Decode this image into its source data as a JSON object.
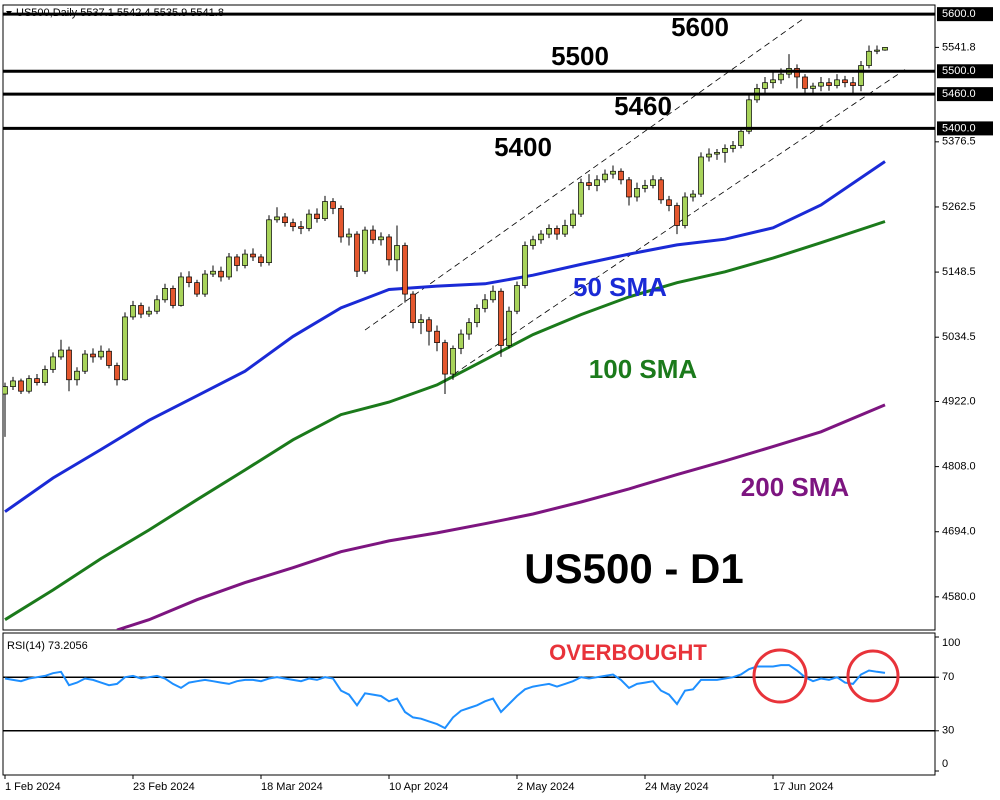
{
  "chart_data": [
    {
      "type": "candlestick",
      "title": "US500,Daily  5537.1 5542.4 5535.9 5541.8",
      "annotation": "US500 - D1",
      "up_color": "#a8d35a",
      "down_color": "#e4572e",
      "xlim": [
        -0.25,
        116.25
      ],
      "xticks": [
        {
          "value": 0,
          "label": "1 Feb 2024"
        },
        {
          "value": 16,
          "label": "23 Feb 2024"
        },
        {
          "value": 32,
          "label": "18 Mar 2024"
        },
        {
          "value": 48,
          "label": "10 Apr 2024"
        },
        {
          "value": 64,
          "label": "2 May 2024"
        },
        {
          "value": 80,
          "label": "24 May 2024"
        },
        {
          "value": 96,
          "label": "17 Jun 2024"
        }
      ],
      "ylim": [
        4522,
        5616
      ],
      "yticks": [
        {
          "value": 4580,
          "label": "4580.0"
        },
        {
          "value": 4694,
          "label": "4694.0"
        },
        {
          "value": 4808,
          "label": "4808.0"
        },
        {
          "value": 4922,
          "label": "4922.0"
        },
        {
          "value": 5034.5,
          "label": "5034.5"
        },
        {
          "value": 5148.5,
          "label": "5148.5"
        },
        {
          "value": 5262.5,
          "label": "5262.5"
        },
        {
          "value": 5376.5,
          "label": "5376.5"
        }
      ],
      "last_price": 5541.8,
      "levels": [
        {
          "value": 5600,
          "label": "5600.0",
          "annotation": "5600"
        },
        {
          "value": 5500,
          "label": "5500.0",
          "annotation": "5500"
        },
        {
          "value": 5460,
          "label": "5460.0",
          "annotation": "5460"
        },
        {
          "value": 5400,
          "label": "5400.0",
          "annotation": "5400"
        }
      ],
      "trendlines": [
        {
          "x": [
            45,
            100
          ],
          "y": [
            5047,
            5594
          ]
        },
        {
          "x": [
            54,
            112.5
          ],
          "y": [
            4950,
            5503
          ]
        }
      ],
      "open": [
        4935,
        4948,
        4958,
        4940,
        4962,
        4955,
        4978,
        5000,
        5012,
        4960,
        4975,
        5005,
        5000,
        5010,
        4985,
        4960,
        5070,
        5090,
        5075,
        5080,
        5100,
        5120,
        5090,
        5140,
        5130,
        5110,
        5145,
        5150,
        5140,
        5175,
        5160,
        5180,
        5175,
        5165,
        5240,
        5245,
        5235,
        5228,
        5225,
        5250,
        5242,
        5272,
        5260,
        5210,
        5215,
        5150,
        5222,
        5205,
        5210,
        5170,
        5195,
        5110,
        5060,
        5065,
        5045,
        5025,
        4970,
        5015,
        5040,
        5060,
        5085,
        5100,
        5115,
        5020,
        5080,
        5125,
        5195,
        5205,
        5215,
        5225,
        5215,
        5230,
        5250,
        5305,
        5300,
        5310,
        5320,
        5325,
        5310,
        5280,
        5295,
        5300,
        5310,
        5275,
        5265,
        5230,
        5280,
        5285,
        5350,
        5355,
        5358,
        5365,
        5370,
        5395,
        5450,
        5470,
        5480,
        5485,
        5495,
        5505,
        5490,
        5470,
        5474,
        5480,
        5475,
        5485,
        5480,
        5475,
        5510,
        5535,
        5537.1
      ],
      "high": [
        4955,
        4965,
        4962,
        4968,
        4970,
        4985,
        5008,
        5030,
        5018,
        4982,
        5012,
        5015,
        5020,
        5015,
        4990,
        5078,
        5098,
        5095,
        5088,
        5108,
        5128,
        5125,
        5148,
        5150,
        5135,
        5152,
        5160,
        5158,
        5182,
        5180,
        5188,
        5190,
        5180,
        5248,
        5262,
        5252,
        5242,
        5238,
        5258,
        5260,
        5282,
        5278,
        5265,
        5225,
        5220,
        5228,
        5230,
        5218,
        5215,
        5230,
        5200,
        5115,
        5075,
        5070,
        5055,
        5030,
        5020,
        5048,
        5068,
        5092,
        5110,
        5125,
        5120,
        5088,
        5132,
        5202,
        5212,
        5222,
        5232,
        5230,
        5240,
        5258,
        5312,
        5320,
        5318,
        5328,
        5335,
        5330,
        5315,
        5305,
        5310,
        5318,
        5315,
        5282,
        5270,
        5288,
        5292,
        5358,
        5365,
        5364,
        5372,
        5378,
        5402,
        5458,
        5478,
        5490,
        5500,
        5505,
        5530,
        5512,
        5495,
        5480,
        5490,
        5488,
        5495,
        5492,
        5490,
        5518,
        5545,
        5545,
        5542.4
      ],
      "low": [
        4860,
        4942,
        4935,
        4936,
        4950,
        4950,
        4972,
        4995,
        4940,
        4950,
        4970,
        4990,
        4995,
        4980,
        4950,
        4958,
        5065,
        5068,
        5070,
        5075,
        5095,
        5085,
        5088,
        5122,
        5105,
        5105,
        5140,
        5132,
        5135,
        5150,
        5155,
        5168,
        5158,
        5160,
        5235,
        5228,
        5220,
        5215,
        5220,
        5235,
        5238,
        5250,
        5200,
        5195,
        5140,
        5145,
        5198,
        5195,
        5160,
        5150,
        5095,
        5050,
        5040,
        5020,
        5010,
        4935,
        4960,
        5005,
        5030,
        5052,
        5078,
        5095,
        5000,
        5015,
        5075,
        5120,
        5188,
        5198,
        5208,
        5205,
        5210,
        5225,
        5245,
        5292,
        5290,
        5305,
        5312,
        5302,
        5265,
        5272,
        5288,
        5295,
        5268,
        5255,
        5215,
        5225,
        5272,
        5280,
        5342,
        5345,
        5340,
        5358,
        5365,
        5390,
        5445,
        5462,
        5470,
        5478,
        5488,
        5470,
        5462,
        5462,
        5465,
        5466,
        5470,
        5472,
        5458,
        5465,
        5505,
        5530,
        5535.9
      ],
      "close": [
        4948,
        4958,
        4940,
        4962,
        4955,
        4978,
        5000,
        5012,
        4960,
        4975,
        5005,
        5000,
        5010,
        4985,
        4960,
        5070,
        5090,
        5075,
        5080,
        5100,
        5120,
        5090,
        5140,
        5130,
        5110,
        5145,
        5150,
        5140,
        5175,
        5160,
        5180,
        5175,
        5165,
        5240,
        5245,
        5235,
        5228,
        5225,
        5250,
        5242,
        5272,
        5260,
        5210,
        5215,
        5150,
        5222,
        5205,
        5210,
        5170,
        5195,
        5110,
        5060,
        5065,
        5045,
        5025,
        4970,
        5015,
        5040,
        5060,
        5085,
        5100,
        5115,
        5020,
        5080,
        5125,
        5195,
        5205,
        5215,
        5225,
        5215,
        5230,
        5250,
        5305,
        5300,
        5310,
        5320,
        5325,
        5310,
        5280,
        5295,
        5300,
        5310,
        5275,
        5265,
        5230,
        5280,
        5285,
        5350,
        5355,
        5358,
        5365,
        5370,
        5395,
        5450,
        5470,
        5480,
        5485,
        5495,
        5505,
        5490,
        5470,
        5474,
        5480,
        5475,
        5485,
        5480,
        5475,
        5510,
        5535,
        5537.1,
        5541.8
      ],
      "series": [
        {
          "name": "50 SMA",
          "color": "#1a2ad6",
          "x": [
            0,
            6,
            12,
            18,
            24,
            30,
            36,
            42,
            48,
            54,
            60,
            66,
            72,
            78,
            84,
            90,
            96,
            102,
            110
          ],
          "values": [
            4729,
            4788,
            4838,
            4889,
            4932,
            4975,
            5036,
            5086,
            5118,
            5124,
            5128,
            5143,
            5162,
            5180,
            5196,
            5206,
            5226,
            5266,
            5342
          ]
        },
        {
          "name": "100 SMA",
          "color": "#1b7a1b",
          "x": [
            0,
            6,
            12,
            18,
            24,
            30,
            36,
            42,
            48,
            54,
            60,
            66,
            72,
            78,
            84,
            90,
            96,
            102,
            110
          ],
          "values": [
            4540,
            4592,
            4647,
            4697,
            4750,
            4802,
            4855,
            4899,
            4921,
            4951,
            4995,
            5039,
            5074,
            5105,
            5130,
            5149,
            5173,
            5200,
            5237
          ]
        },
        {
          "name": "200 SMA",
          "color": "#7d1580",
          "x": [
            14,
            18,
            24,
            30,
            36,
            42,
            48,
            54,
            60,
            66,
            72,
            78,
            84,
            90,
            96,
            102,
            110
          ],
          "values": [
            4522,
            4540,
            4575,
            4605,
            4631,
            4659,
            4678,
            4692,
            4708,
            4725,
            4746,
            4769,
            4794,
            4818,
            4843,
            4869,
            4916
          ]
        }
      ]
    },
    {
      "type": "line",
      "title": "RSI(14) 73.2056",
      "annotation": "OVERBOUGHT",
      "color": "#1e8fff",
      "ylim": [
        0,
        100
      ],
      "yticks": [
        0,
        30,
        70,
        100
      ],
      "levels": [
        70,
        30
      ],
      "values": [
        69,
        68,
        67,
        69,
        70,
        71,
        73,
        74,
        64,
        66,
        69,
        68,
        66,
        64,
        65,
        70,
        71,
        69,
        70,
        71,
        69,
        65,
        62,
        66,
        67,
        68,
        67,
        66,
        65,
        67,
        68,
        68,
        67,
        69,
        70,
        69,
        68,
        67,
        69,
        68,
        70,
        69,
        60,
        57,
        49,
        58,
        57,
        56,
        52,
        54,
        44,
        40,
        39,
        37,
        35,
        32,
        40,
        45,
        47,
        49,
        52,
        54,
        44,
        50,
        56,
        61,
        63,
        64,
        65,
        63,
        65,
        67,
        70,
        69,
        70,
        71,
        72,
        68,
        62,
        65,
        66,
        67,
        60,
        57,
        50,
        60,
        61,
        68,
        68,
        68,
        69,
        70,
        72,
        76,
        78,
        78,
        78,
        79,
        79,
        75,
        70,
        67,
        69,
        68,
        70,
        66,
        65,
        72,
        75,
        74,
        73.2056
      ]
    }
  ]
}
